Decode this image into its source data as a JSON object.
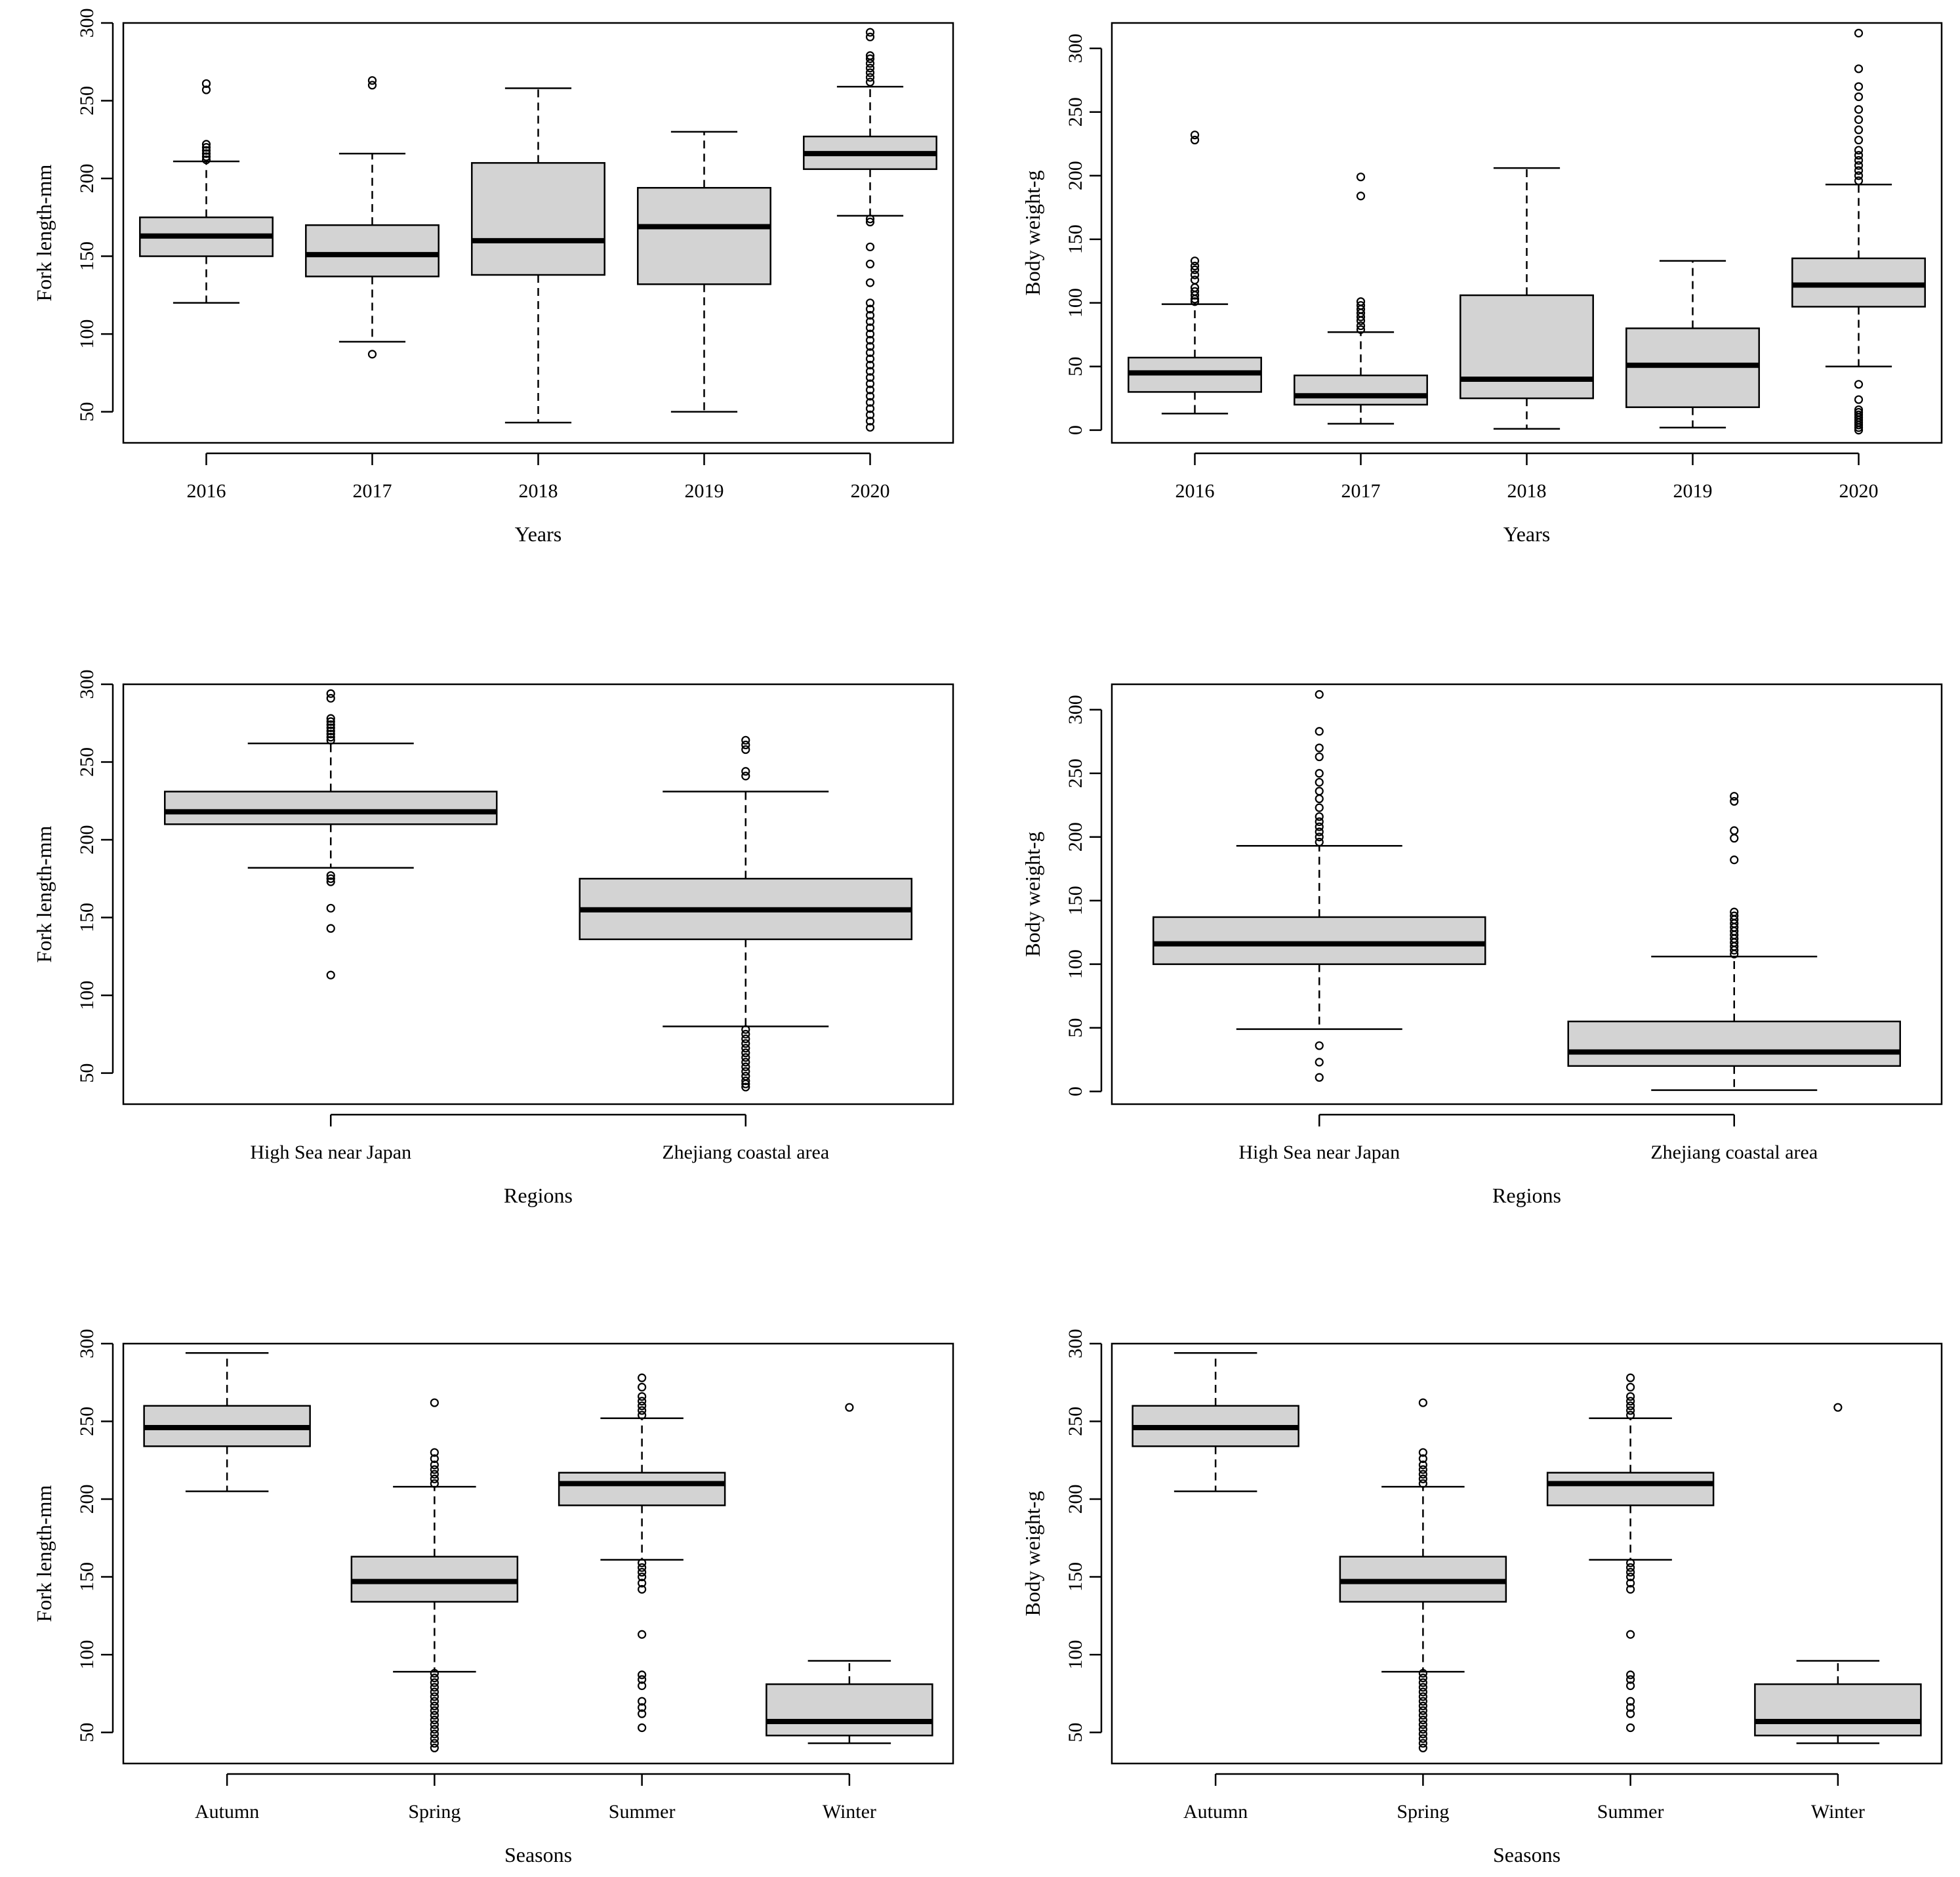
{
  "colors": {
    "box_fill": "#d3d3d3",
    "stroke": "#000000",
    "background": "#ffffff"
  },
  "chart_data": [
    {
      "type": "boxplot",
      "xlabel": "Years",
      "ylabel": "Fork length-mm",
      "ylim": [
        30,
        300
      ],
      "yticks": [
        50,
        100,
        150,
        200,
        250,
        300
      ],
      "categories": [
        "2016",
        "2017",
        "2018",
        "2019",
        "2020"
      ],
      "boxes": [
        {
          "whisker_low": 120,
          "q1": 150,
          "median": 163,
          "q3": 175,
          "whisker_high": 211,
          "outliers": [
            212,
            214,
            216,
            218,
            220,
            222,
            257,
            261
          ]
        },
        {
          "whisker_low": 95,
          "q1": 137,
          "median": 151,
          "q3": 170,
          "whisker_high": 216,
          "outliers": [
            87,
            260,
            263
          ]
        },
        {
          "whisker_low": 43,
          "q1": 138,
          "median": 160,
          "q3": 210,
          "whisker_high": 258,
          "outliers": []
        },
        {
          "whisker_low": 50,
          "q1": 132,
          "median": 169,
          "q3": 194,
          "whisker_high": 230,
          "outliers": []
        },
        {
          "whisker_low": 176,
          "q1": 206,
          "median": 216,
          "q3": 227,
          "whisker_high": 259,
          "outliers": [
            40,
            44,
            48,
            52,
            56,
            60,
            64,
            68,
            72,
            76,
            80,
            84,
            88,
            92,
            96,
            100,
            104,
            108,
            112,
            116,
            120,
            133,
            145,
            156,
            172,
            174,
            262,
            265,
            268,
            271,
            274,
            277,
            279,
            291,
            294
          ]
        }
      ]
    },
    {
      "type": "boxplot",
      "xlabel": "Years",
      "ylabel": "Body weight-g",
      "ylim": [
        -10,
        320
      ],
      "yticks": [
        0,
        50,
        100,
        150,
        200,
        250,
        300
      ],
      "categories": [
        "2016",
        "2017",
        "2018",
        "2019",
        "2020"
      ],
      "boxes": [
        {
          "whisker_low": 13,
          "q1": 30,
          "median": 45,
          "q3": 57,
          "whisker_high": 99,
          "outliers": [
            101,
            103,
            106,
            109,
            112,
            118,
            122,
            126,
            129,
            133,
            228,
            232
          ]
        },
        {
          "whisker_low": 5,
          "q1": 20,
          "median": 27,
          "q3": 43,
          "whisker_high": 77,
          "outliers": [
            79,
            82,
            86,
            89,
            92,
            95,
            98,
            101,
            184,
            199
          ]
        },
        {
          "whisker_low": 1,
          "q1": 25,
          "median": 40,
          "q3": 106,
          "whisker_high": 206,
          "outliers": []
        },
        {
          "whisker_low": 2,
          "q1": 18,
          "median": 51,
          "q3": 80,
          "whisker_high": 133,
          "outliers": []
        },
        {
          "whisker_low": 50,
          "q1": 97,
          "median": 114,
          "q3": 135,
          "whisker_high": 193,
          "outliers": [
            0,
            2,
            4,
            6,
            8,
            10,
            12,
            14,
            16,
            24,
            36,
            196,
            200,
            204,
            208,
            212,
            216,
            220,
            228,
            236,
            244,
            252,
            262,
            270,
            284,
            312
          ]
        }
      ]
    },
    {
      "type": "boxplot",
      "xlabel": "Regions",
      "ylabel": "Fork length-mm",
      "ylim": [
        30,
        300
      ],
      "yticks": [
        50,
        100,
        150,
        200,
        250,
        300
      ],
      "categories": [
        "High Sea near Japan",
        "Zhejiang coastal area"
      ],
      "boxes": [
        {
          "whisker_low": 182,
          "q1": 210,
          "median": 218,
          "q3": 231,
          "whisker_high": 262,
          "outliers": [
            113,
            143,
            156,
            173,
            175,
            177,
            264,
            266,
            268,
            270,
            272,
            274,
            276,
            278,
            291,
            294
          ]
        },
        {
          "whisker_low": 80,
          "q1": 136,
          "median": 155,
          "q3": 175,
          "whisker_high": 231,
          "outliers": [
            41,
            43,
            45,
            48,
            51,
            54,
            57,
            60,
            63,
            66,
            69,
            72,
            75,
            78,
            241,
            244,
            258,
            261,
            264
          ]
        }
      ]
    },
    {
      "type": "boxplot",
      "xlabel": "Regions",
      "ylabel": "Body weight-g",
      "ylim": [
        -10,
        320
      ],
      "yticks": [
        0,
        50,
        100,
        150,
        200,
        250,
        300
      ],
      "categories": [
        "High Sea near Japan",
        "Zhejiang coastal area"
      ],
      "boxes": [
        {
          "whisker_low": 49,
          "q1": 100,
          "median": 116,
          "q3": 137,
          "whisker_high": 193,
          "outliers": [
            11,
            23,
            36,
            196,
            200,
            204,
            208,
            212,
            216,
            223,
            230,
            236,
            243,
            250,
            263,
            270,
            283,
            312
          ]
        },
        {
          "whisker_low": 1,
          "q1": 20,
          "median": 31,
          "q3": 55,
          "whisker_high": 106,
          "outliers": [
            108,
            111,
            114,
            117,
            120,
            123,
            126,
            129,
            132,
            135,
            138,
            141,
            182,
            199,
            205,
            228,
            232
          ]
        }
      ]
    },
    {
      "type": "boxplot",
      "xlabel": "Seasons",
      "ylabel": "Fork length-mm",
      "ylim": [
        30,
        300
      ],
      "yticks": [
        50,
        100,
        150,
        200,
        250,
        300
      ],
      "categories": [
        "Autumn",
        "Spring",
        "Summer",
        "Winter"
      ],
      "boxes": [
        {
          "whisker_low": 205,
          "q1": 234,
          "median": 246,
          "q3": 260,
          "whisker_high": 294,
          "outliers": []
        },
        {
          "whisker_low": 89,
          "q1": 134,
          "median": 147,
          "q3": 163,
          "whisker_high": 208,
          "outliers": [
            40,
            43,
            46,
            49,
            52,
            55,
            58,
            61,
            64,
            67,
            70,
            73,
            76,
            79,
            82,
            85,
            88,
            210,
            213,
            216,
            219,
            222,
            226,
            230,
            262
          ]
        },
        {
          "whisker_low": 161,
          "q1": 196,
          "median": 210,
          "q3": 217,
          "whisker_high": 252,
          "outliers": [
            53,
            62,
            66,
            70,
            80,
            84,
            87,
            113,
            142,
            146,
            150,
            153,
            156,
            159,
            254,
            257,
            260,
            263,
            266,
            272,
            278
          ]
        },
        {
          "whisker_low": 43,
          "q1": 48,
          "median": 57,
          "q3": 81,
          "whisker_high": 96,
          "outliers": [
            259
          ]
        }
      ]
    },
    {
      "type": "boxplot",
      "xlabel": "Seasons",
      "ylabel": "Body weight-g",
      "ylim": [
        30,
        300
      ],
      "yticks": [
        50,
        100,
        150,
        200,
        250,
        300
      ],
      "categories": [
        "Autumn",
        "Spring",
        "Summer",
        "Winter"
      ],
      "boxes": [
        {
          "whisker_low": 205,
          "q1": 234,
          "median": 246,
          "q3": 260,
          "whisker_high": 294,
          "outliers": []
        },
        {
          "whisker_low": 89,
          "q1": 134,
          "median": 147,
          "q3": 163,
          "whisker_high": 208,
          "outliers": [
            40,
            43,
            46,
            49,
            52,
            55,
            58,
            61,
            64,
            67,
            70,
            73,
            76,
            79,
            82,
            85,
            88,
            210,
            213,
            216,
            219,
            222,
            226,
            230,
            262
          ]
        },
        {
          "whisker_low": 161,
          "q1": 196,
          "median": 210,
          "q3": 217,
          "whisker_high": 252,
          "outliers": [
            53,
            62,
            66,
            70,
            80,
            84,
            87,
            113,
            142,
            146,
            150,
            153,
            156,
            159,
            254,
            257,
            260,
            263,
            266,
            272,
            278
          ]
        },
        {
          "whisker_low": 43,
          "q1": 48,
          "median": 57,
          "q3": 81,
          "whisker_high": 96,
          "outliers": [
            259
          ]
        }
      ]
    }
  ]
}
